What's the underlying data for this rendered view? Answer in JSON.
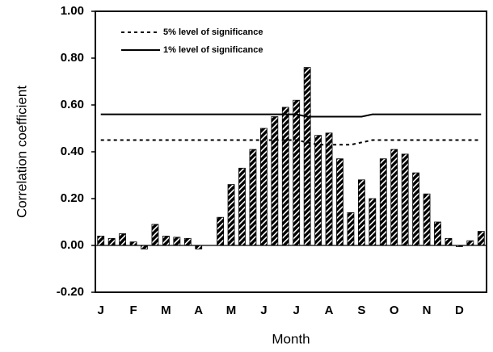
{
  "chart_data": {
    "type": "bar",
    "y_label": "Correlation coefficient",
    "x_label": "Month",
    "categories": [
      "J",
      null,
      null,
      "F",
      null,
      null,
      "M",
      null,
      null,
      "A",
      null,
      null,
      "M",
      null,
      null,
      "J",
      null,
      null,
      "J",
      null,
      null,
      "A",
      null,
      null,
      "S",
      null,
      null,
      "O",
      null,
      null,
      "N",
      null,
      null,
      "D",
      null,
      null
    ],
    "values": [
      0.04,
      0.03,
      0.05,
      0.015,
      -0.015,
      0.09,
      0.04,
      0.035,
      0.03,
      -0.015,
      null,
      0.12,
      0.26,
      0.33,
      0.41,
      0.5,
      0.55,
      0.59,
      0.62,
      0.76,
      0.47,
      0.48,
      0.37,
      0.14,
      0.28,
      0.2,
      0.37,
      0.41,
      0.39,
      0.31,
      0.22,
      0.1,
      0.03,
      -0.005,
      0.02,
      0.06
    ],
    "color": "#000000",
    "series": [
      {
        "name": "5% level of significance",
        "color": "#000000",
        "dashed": true,
        "values": [
          0.45,
          0.45,
          0.45,
          0.45,
          0.45,
          0.45,
          0.45,
          0.45,
          0.45,
          0.45,
          0.45,
          0.45,
          0.45,
          0.45,
          0.45,
          0.45,
          0.45,
          0.45,
          0.45,
          0.44,
          0.43,
          0.43,
          0.43,
          0.43,
          0.44,
          0.45,
          0.45,
          0.45,
          0.45,
          0.45,
          0.45,
          0.45,
          0.45,
          0.45,
          0.45,
          0.45
        ]
      },
      {
        "name": "1% level of significance",
        "color": "#000000",
        "dashed": false,
        "values": [
          0.56,
          0.56,
          0.56,
          0.56,
          0.56,
          0.56,
          0.56,
          0.56,
          0.56,
          0.56,
          0.56,
          0.56,
          0.56,
          0.56,
          0.56,
          0.56,
          0.56,
          0.56,
          0.56,
          0.55,
          0.55,
          0.55,
          0.55,
          0.55,
          0.55,
          0.56,
          0.56,
          0.56,
          0.56,
          0.56,
          0.56,
          0.56,
          0.56,
          0.56,
          0.56,
          0.56
        ]
      }
    ],
    "ylim": [
      -0.2,
      1.0
    ],
    "yticks": [
      {
        "value": -0.2,
        "label": "-0.20"
      },
      {
        "value": 0,
        "label": "0.00"
      },
      {
        "value": 0.2,
        "label": "0.20"
      },
      {
        "value": 0.4,
        "label": "0.40"
      },
      {
        "value": 0.6,
        "label": "0.60"
      },
      {
        "value": 0.8,
        "label": "0.80"
      },
      {
        "value": 1.0,
        "label": "1.00"
      }
    ]
  }
}
